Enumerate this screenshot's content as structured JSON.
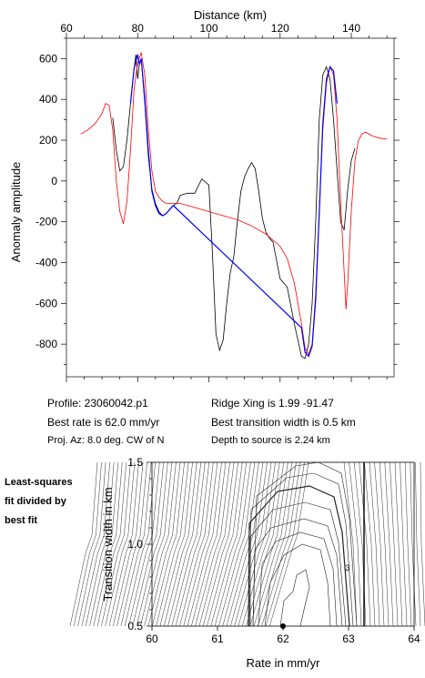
{
  "top_chart": {
    "x_title": "Distance (km)",
    "y_title": "Anomaly amplitude",
    "xlim": [
      60,
      152
    ],
    "ylim": [
      -960,
      700
    ],
    "x_ticks": [
      60,
      80,
      100,
      120,
      140
    ],
    "y_ticks": [
      600,
      400,
      200,
      0,
      -200,
      -400,
      -600,
      -800
    ],
    "colors": {
      "observed": "#000000",
      "model": "#ff0000",
      "fit": "#0000ff"
    }
  },
  "info": {
    "profile": "Profile: 23060042.p1",
    "best_rate": "Best rate is 62.0 mm/yr",
    "proj_az": "Proj. Az: 8.0 deg. CW of N",
    "ridge_xing": "Ridge Xing is 1.99 -91.47",
    "transition": "Best transition width is 0.5 km",
    "depth": "Depth to source is    2.24 km"
  },
  "side_label": [
    "Least-squares",
    "fit divided by",
    "best fit"
  ],
  "bottom_chart": {
    "x_title": "Rate in mm/yr",
    "y_title": "Transition width in km",
    "xlim": [
      60,
      64
    ],
    "ylim": [
      0.5,
      1.5
    ],
    "x_ticks": [
      "60",
      "61",
      "62",
      "63",
      "64"
    ],
    "y_ticks": [
      "1.5",
      "1.0",
      "0.5"
    ],
    "contour_label": "3",
    "best_point": {
      "rate": 62.0,
      "width": 0.5
    }
  },
  "chart_data": [
    {
      "type": "line",
      "xlabel": "Distance (km)",
      "ylabel": "Anomaly amplitude",
      "xlim": [
        60,
        152
      ],
      "ylim": [
        -960,
        700
      ],
      "series": [
        {
          "x": [
            73,
            74,
            75,
            76,
            77,
            78,
            79,
            79.5,
            80,
            80.5,
            81,
            82,
            83,
            84,
            85,
            86,
            87,
            88,
            89,
            90,
            91,
            92,
            94,
            96,
            98,
            100,
            101,
            102,
            103,
            104,
            105,
            106,
            107,
            108,
            109,
            110,
            111,
            112,
            113,
            114,
            115,
            116,
            117,
            118,
            120,
            121,
            122,
            124,
            126,
            127,
            128,
            129,
            130,
            131,
            132,
            133,
            134,
            135,
            136,
            137,
            138,
            139,
            140,
            141
          ],
          "y": [
            310,
            150,
            50,
            70,
            200,
            380,
            550,
            620,
            500,
            580,
            600,
            380,
            120,
            -40,
            -110,
            -150,
            -170,
            -160,
            -140,
            -120,
            -110,
            -70,
            -60,
            -60,
            10,
            -20,
            -350,
            -750,
            -830,
            -780,
            -600,
            -450,
            -370,
            -200,
            -50,
            20,
            60,
            90,
            60,
            -50,
            -180,
            -250,
            -280,
            -300,
            -480,
            -500,
            -520,
            -700,
            -860,
            -870,
            -800,
            -600,
            -200,
            300,
            520,
            560,
            500,
            300,
            50,
            -200,
            -240,
            -40,
            100,
            160
          ]
        },
        {
          "x": [
            64,
            66,
            68,
            70,
            71,
            72,
            73,
            74,
            75,
            76,
            77,
            78,
            79,
            80,
            81,
            82,
            83,
            84,
            85,
            86,
            87,
            88,
            90,
            92,
            96,
            100,
            104,
            108,
            112,
            116,
            120,
            122,
            124,
            126,
            127,
            128,
            129,
            130,
            131,
            132,
            133,
            134,
            135,
            136,
            137,
            138,
            138.5,
            139,
            140,
            141,
            142,
            143,
            144,
            146,
            148,
            150
          ],
          "y": [
            230,
            250,
            280,
            330,
            380,
            370,
            250,
            0,
            -150,
            -210,
            -100,
            150,
            450,
            580,
            630,
            520,
            250,
            50,
            -50,
            -80,
            -100,
            -110,
            -110,
            -110,
            -130,
            -150,
            -170,
            -190,
            -220,
            -260,
            -320,
            -380,
            -500,
            -700,
            -820,
            -850,
            -800,
            -550,
            -150,
            250,
            480,
            560,
            520,
            300,
            -100,
            -450,
            -630,
            -500,
            -150,
            100,
            200,
            230,
            240,
            220,
            210,
            205
          ]
        },
        {
          "x": [
            78,
            79,
            80,
            80.5,
            81,
            82,
            83,
            84,
            85,
            86,
            87,
            88,
            89,
            90,
            126,
            127,
            128,
            129,
            130,
            131,
            132,
            133,
            134,
            135,
            136
          ],
          "y": [
            380,
            550,
            620,
            570,
            600,
            400,
            150,
            -50,
            -120,
            -160,
            -170,
            -160,
            -140,
            -120,
            -720,
            -840,
            -860,
            -810,
            -580,
            -160,
            280,
            500,
            560,
            540,
            380
          ]
        }
      ]
    },
    {
      "type": "contour",
      "xlabel": "Rate in mm/yr",
      "ylabel": "Transition width in km",
      "xlim": [
        60,
        64
      ],
      "ylim": [
        0.5,
        1.5
      ],
      "points": [
        {
          "x": 62.0,
          "y": 0.5
        }
      ]
    }
  ]
}
